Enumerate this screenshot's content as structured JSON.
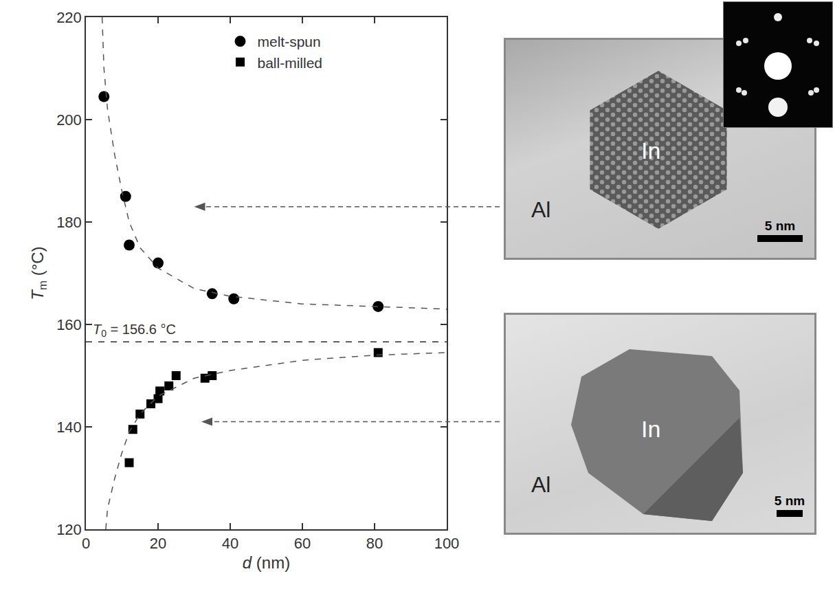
{
  "chart_data": {
    "type": "scatter",
    "x_label": {
      "symbol": "d",
      "unit": "(nm)"
    },
    "y_label": {
      "symbol": "T",
      "subscript": "m",
      "unit": "(°C)"
    },
    "xlim": [
      0,
      100
    ],
    "xticks": [
      0,
      20,
      40,
      60,
      80,
      100
    ],
    "ylim": [
      120,
      220
    ],
    "yticks": [
      120,
      140,
      160,
      180,
      200,
      220
    ],
    "grid": false,
    "legend": "top",
    "series": [
      {
        "name": "melt-spun",
        "type": "scatter",
        "marker": "circle",
        "color": "#000000",
        "x": [
          5,
          11,
          12,
          20,
          35,
          41,
          81
        ],
        "values": [
          204.5,
          185,
          175.5,
          172,
          166,
          165,
          163.5
        ]
      },
      {
        "name": "ball-milled",
        "type": "scatter",
        "marker": "square",
        "color": "#000000",
        "x": [
          12,
          13,
          15,
          18,
          20,
          20.5,
          23,
          25,
          33,
          35,
          81
        ],
        "values": [
          133,
          139.5,
          142.5,
          144.5,
          145.5,
          147,
          148,
          150,
          149.5,
          150,
          154.5
        ]
      },
      {
        "type": "line",
        "line_style": "dash",
        "color": "#555555",
        "x": [
          4.5,
          5,
          6,
          8,
          10,
          12,
          15,
          20,
          30,
          40,
          60,
          80,
          100
        ],
        "values": [
          220,
          210,
          202,
          193,
          186,
          180,
          175,
          171,
          167,
          165.5,
          164,
          163.5,
          163
        ]
      },
      {
        "type": "line",
        "line_style": "dash",
        "color": "#555555",
        "x": [
          5.5,
          6,
          8,
          10,
          12,
          15,
          20,
          30,
          40,
          60,
          80,
          100
        ],
        "values": [
          120,
          124,
          130,
          135,
          139,
          142.5,
          146,
          149.5,
          151,
          153,
          154,
          154.5
        ]
      }
    ],
    "reference_line": {
      "symbol": "T",
      "subscript": "0",
      "text": "= 156.6 °C",
      "value": 156.6,
      "line_style": "dash",
      "color": "#000000"
    },
    "pointers": [
      {
        "x": 30,
        "y": 183
      },
      {
        "x": 32,
        "y": 141
      }
    ]
  },
  "micrographs": [
    {
      "particle": "In",
      "matrix": "Al",
      "scale_bar": "5 nm"
    },
    {
      "particle": "In",
      "matrix": "Al",
      "scale_bar": "5 nm"
    }
  ]
}
